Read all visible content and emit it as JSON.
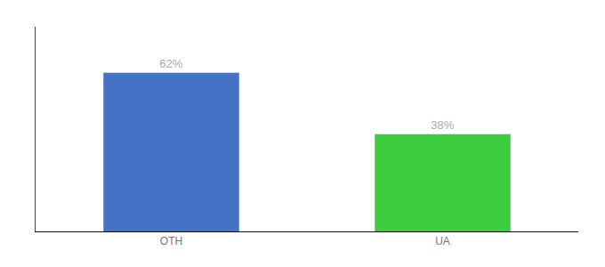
{
  "chart_data": {
    "type": "bar",
    "categories": [
      "OTH",
      "UA"
    ],
    "values": [
      62,
      38
    ],
    "value_labels": [
      "62%",
      "38%"
    ],
    "colors": [
      "#4472c4",
      "#3dcc3d"
    ],
    "ylim": [
      0,
      80
    ],
    "yticks": [],
    "grid": false,
    "data_labels": true,
    "tick_labels": "x"
  }
}
